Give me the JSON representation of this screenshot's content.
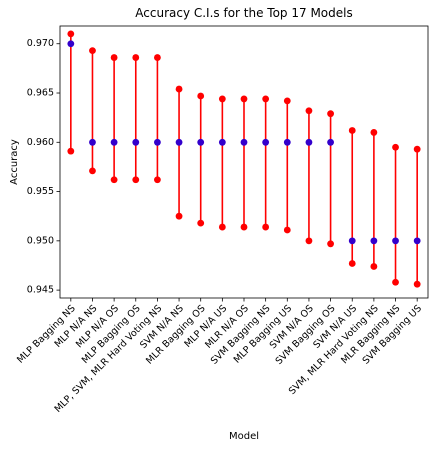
{
  "chart_data": {
    "type": "scatter",
    "title": "Accuracy C.I.s for the Top 17 Models",
    "xlabel": "Model",
    "ylabel": "Accuracy",
    "ylim": [
      0.9442,
      0.9718
    ],
    "yticks": [
      0.945,
      0.95,
      0.955,
      0.96,
      0.965,
      0.97
    ],
    "ytick_labels": [
      "0.945",
      "0.950",
      "0.955",
      "0.960",
      "0.965",
      "0.970"
    ],
    "grid": false,
    "categories": [
      "MLP Bagging NS",
      "MLP N/A NS",
      "MLP N/A OS",
      "MLP Bagging OS",
      "MLP, SVM, MLR Hard Voting NS",
      "SVM N/A NS",
      "MLR Bagging OS",
      "MLP N/A US",
      "MLR N/A OS",
      "SVM Bagging NS",
      "MLP Bagging US",
      "SVM N/A OS",
      "SVM Bagging OS",
      "SVM N/A US",
      "SVM, MLR Hard Voting NS",
      "MLR Bagging NS",
      "SVM Bagging US"
    ],
    "accuracy": [
      0.97,
      0.96,
      0.96,
      0.96,
      0.96,
      0.96,
      0.96,
      0.96,
      0.96,
      0.96,
      0.96,
      0.96,
      0.96,
      0.95,
      0.95,
      0.95,
      0.95
    ],
    "ci_lower": [
      0.9591,
      0.9571,
      0.9562,
      0.9562,
      0.9562,
      0.9525,
      0.9518,
      0.9514,
      0.9514,
      0.9514,
      0.9511,
      0.95,
      0.9497,
      0.9477,
      0.9474,
      0.9458,
      0.9456
    ],
    "ci_upper": [
      0.971,
      0.9693,
      0.9686,
      0.9686,
      0.9686,
      0.9654,
      0.9647,
      0.9644,
      0.9644,
      0.9644,
      0.9642,
      0.9632,
      0.9629,
      0.9612,
      0.961,
      0.9595,
      0.9593
    ],
    "colors": {
      "interval": "#ff0000",
      "point": "#3300cc",
      "axis": "#000000"
    }
  }
}
